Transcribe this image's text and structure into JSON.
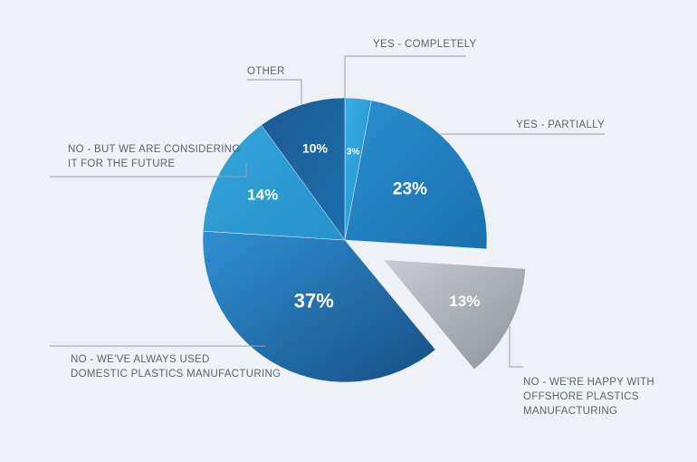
{
  "chart_data": {
    "type": "pie",
    "title": "",
    "slices": [
      {
        "label": [
          "YES - COMPLETELY"
        ],
        "value": 3,
        "display": "3%",
        "color_from": "#3aaee3",
        "color_to": "#1f8fce",
        "exploded": false
      },
      {
        "label": [
          "YES - PARTIALLY"
        ],
        "value": 23,
        "display": "23%",
        "color_from": "#2a8fd0",
        "color_to": "#1a6fae",
        "exploded": false
      },
      {
        "label": [
          "NO - WE'RE HAPPY WITH",
          "OFFSHORE PLASTICS",
          "MANUFACTURING"
        ],
        "value": 13,
        "display": "13%",
        "color_from": "#c9ccd1",
        "color_to": "#8e949c",
        "exploded": true
      },
      {
        "label": [
          "NO - WE'VE ALWAYS USED",
          "DOMESTIC PLASTICS MANUFACTURING"
        ],
        "value": 37,
        "display": "37%",
        "color_from": "#2f8fd3",
        "color_to": "#174f85",
        "exploded": false
      },
      {
        "label": [
          "NO - BUT WE ARE CONSIDERING",
          "IT FOR THE FUTURE"
        ],
        "value": 14,
        "display": "14%",
        "color_from": "#34a4d8",
        "color_to": "#2692cc",
        "exploded": false
      },
      {
        "label": [
          "OTHER"
        ],
        "value": 10,
        "display": "10%",
        "color_from": "#1d5a93",
        "color_to": "#1a6fae",
        "exploded": false
      }
    ],
    "legend": "none"
  }
}
